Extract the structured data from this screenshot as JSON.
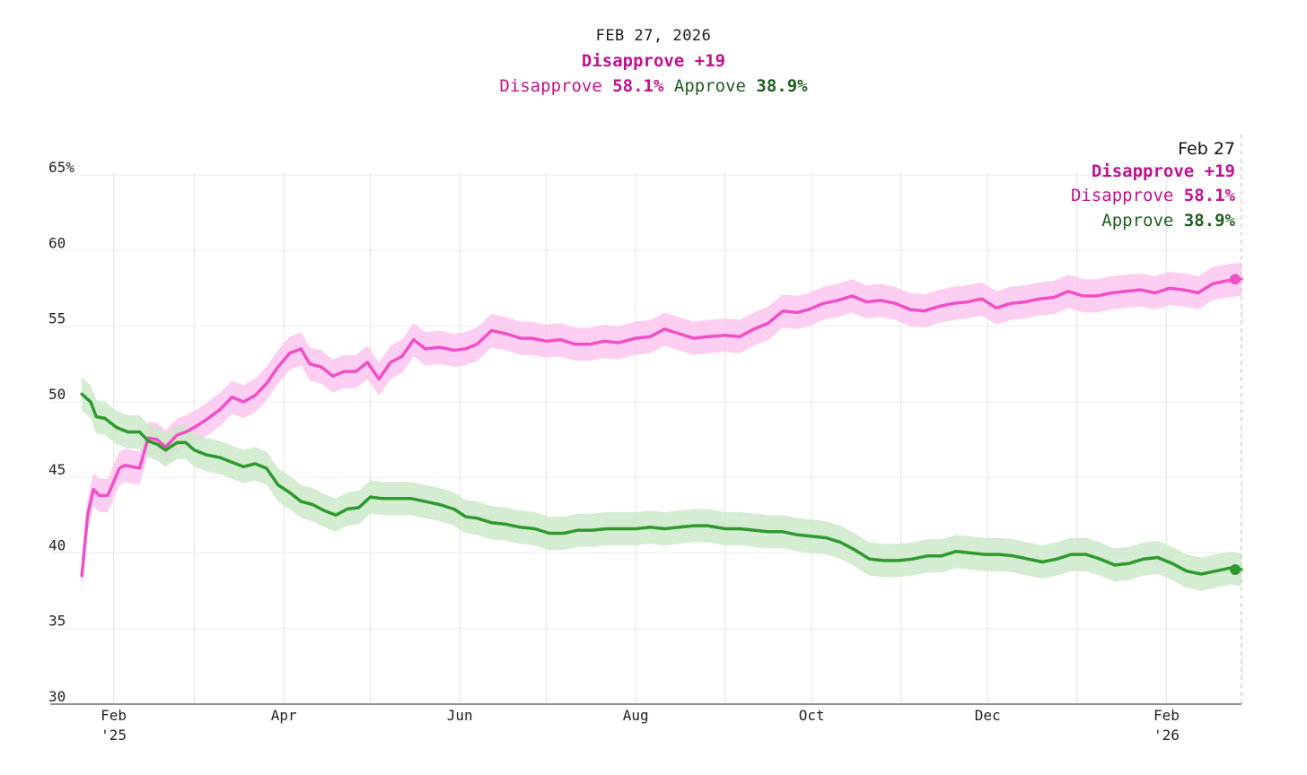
{
  "header": {
    "date": "FEB 27, 2026",
    "net": "Disapprove +19",
    "disapprove_label": "Disapprove",
    "disapprove_value": "58.1%",
    "approve_label": "Approve",
    "approve_value": "38.9%"
  },
  "tooltip": {
    "date": "Feb 27",
    "net": "Disapprove +19",
    "disapprove_label": "Disapprove",
    "disapprove_value": "58.1%",
    "approve_label": "Approve",
    "approve_value": "38.9%"
  },
  "colors": {
    "disapprove": "#f04fc6",
    "disapprove_band": "#fbc6ef",
    "disapprove_text": "#c2118f",
    "approve": "#2e9a2e",
    "approve_band": "#cde9c9",
    "approve_text": "#1e5e1e",
    "grid": "#e6e6e6"
  },
  "chart_data": {
    "type": "line",
    "title": "",
    "xlabel": "",
    "ylabel": "",
    "ylim": [
      30,
      65
    ],
    "yticks": [
      30,
      35,
      40,
      45,
      50,
      55,
      60,
      65
    ],
    "ytick_labels": [
      "30",
      "35",
      "40",
      "45",
      "50",
      "55",
      "60",
      "65%"
    ],
    "xlim": [
      "2025-01-20",
      "2026-02-27"
    ],
    "xticks": [
      {
        "date": "2025-02-01",
        "label": "Feb",
        "sub": "'25"
      },
      {
        "date": "2025-04-01",
        "label": "Apr",
        "sub": ""
      },
      {
        "date": "2025-06-01",
        "label": "Jun",
        "sub": ""
      },
      {
        "date": "2025-08-01",
        "label": "Aug",
        "sub": ""
      },
      {
        "date": "2025-10-01",
        "label": "Oct",
        "sub": ""
      },
      {
        "date": "2025-12-01",
        "label": "Dec",
        "sub": ""
      },
      {
        "date": "2026-02-01",
        "label": "Feb",
        "sub": "'26"
      }
    ],
    "grid": "vertical-monthly-and-horizontal",
    "band_halfwidth": 1.1,
    "series": [
      {
        "name": "Disapprove",
        "x": [
          "2025-01-21",
          "2025-01-23",
          "2025-01-25",
          "2025-01-27",
          "2025-01-30",
          "2025-02-03",
          "2025-02-05",
          "2025-02-10",
          "2025-02-13",
          "2025-02-16",
          "2025-02-19",
          "2025-02-23",
          "2025-02-26",
          "2025-03-01",
          "2025-03-05",
          "2025-03-10",
          "2025-03-14",
          "2025-03-18",
          "2025-03-22",
          "2025-03-26",
          "2025-03-30",
          "2025-04-03",
          "2025-04-07",
          "2025-04-10",
          "2025-04-14",
          "2025-04-18",
          "2025-04-22",
          "2025-04-26",
          "2025-04-30",
          "2025-05-04",
          "2025-05-08",
          "2025-05-12",
          "2025-05-16",
          "2025-05-20",
          "2025-05-25",
          "2025-05-30",
          "2025-06-03",
          "2025-06-07",
          "2025-06-12",
          "2025-06-17",
          "2025-06-22",
          "2025-06-26",
          "2025-07-01",
          "2025-07-06",
          "2025-07-11",
          "2025-07-16",
          "2025-07-21",
          "2025-07-26",
          "2025-08-01",
          "2025-08-06",
          "2025-08-11",
          "2025-08-16",
          "2025-08-21",
          "2025-08-26",
          "2025-09-01",
          "2025-09-06",
          "2025-09-11",
          "2025-09-16",
          "2025-09-21",
          "2025-09-26",
          "2025-09-30",
          "2025-10-05",
          "2025-10-10",
          "2025-10-15",
          "2025-10-20",
          "2025-10-25",
          "2025-10-30",
          "2025-11-04",
          "2025-11-09",
          "2025-11-14",
          "2025-11-19",
          "2025-11-24",
          "2025-11-29",
          "2025-12-04",
          "2025-12-09",
          "2025-12-14",
          "2025-12-19",
          "2025-12-24",
          "2025-12-29",
          "2026-01-03",
          "2026-01-08",
          "2026-01-13",
          "2026-01-18",
          "2026-01-23",
          "2026-01-28",
          "2026-02-02",
          "2026-02-07",
          "2026-02-12",
          "2026-02-17",
          "2026-02-22",
          "2026-02-27"
        ],
        "y": [
          38.5,
          42.5,
          44.2,
          43.8,
          43.8,
          45.6,
          45.8,
          45.6,
          47.6,
          47.5,
          47.0,
          47.8,
          48.0,
          48.3,
          48.8,
          49.5,
          50.3,
          50.0,
          50.4,
          51.2,
          52.3,
          53.2,
          53.5,
          52.5,
          52.3,
          51.7,
          52.0,
          52.0,
          52.6,
          51.5,
          52.6,
          53.0,
          54.1,
          53.5,
          53.6,
          53.4,
          53.5,
          53.8,
          54.7,
          54.5,
          54.2,
          54.2,
          54.0,
          54.1,
          53.8,
          53.8,
          54.0,
          53.9,
          54.2,
          54.3,
          54.8,
          54.5,
          54.2,
          54.3,
          54.4,
          54.3,
          54.8,
          55.2,
          56.0,
          55.9,
          56.1,
          56.5,
          56.7,
          57.0,
          56.6,
          56.7,
          56.5,
          56.1,
          56.0,
          56.3,
          56.5,
          56.6,
          56.8,
          56.2,
          56.5,
          56.6,
          56.8,
          56.9,
          57.3,
          57.0,
          57.0,
          57.2,
          57.3,
          57.4,
          57.2,
          57.5,
          57.4,
          57.2,
          57.8,
          58.0,
          58.1
        ]
      },
      {
        "name": "Approve",
        "x": [
          "2025-01-21",
          "2025-01-24",
          "2025-01-26",
          "2025-01-29",
          "2025-02-02",
          "2025-02-06",
          "2025-02-10",
          "2025-02-13",
          "2025-02-16",
          "2025-02-19",
          "2025-02-23",
          "2025-02-26",
          "2025-03-01",
          "2025-03-05",
          "2025-03-10",
          "2025-03-14",
          "2025-03-18",
          "2025-03-22",
          "2025-03-26",
          "2025-03-30",
          "2025-04-03",
          "2025-04-07",
          "2025-04-11",
          "2025-04-15",
          "2025-04-19",
          "2025-04-23",
          "2025-04-27",
          "2025-05-01",
          "2025-05-05",
          "2025-05-10",
          "2025-05-15",
          "2025-05-20",
          "2025-05-25",
          "2025-05-30",
          "2025-06-03",
          "2025-06-07",
          "2025-06-12",
          "2025-06-17",
          "2025-06-22",
          "2025-06-27",
          "2025-07-02",
          "2025-07-07",
          "2025-07-12",
          "2025-07-17",
          "2025-07-22",
          "2025-07-27",
          "2025-08-01",
          "2025-08-06",
          "2025-08-11",
          "2025-08-16",
          "2025-08-21",
          "2025-08-26",
          "2025-09-01",
          "2025-09-06",
          "2025-09-11",
          "2025-09-16",
          "2025-09-21",
          "2025-09-26",
          "2025-10-01",
          "2025-10-06",
          "2025-10-11",
          "2025-10-16",
          "2025-10-21",
          "2025-10-26",
          "2025-10-31",
          "2025-11-05",
          "2025-11-10",
          "2025-11-15",
          "2025-11-20",
          "2025-11-25",
          "2025-11-30",
          "2025-12-05",
          "2025-12-10",
          "2025-12-15",
          "2025-12-20",
          "2025-12-25",
          "2025-12-30",
          "2026-01-04",
          "2026-01-09",
          "2026-01-14",
          "2026-01-19",
          "2026-01-24",
          "2026-01-29",
          "2026-02-03",
          "2026-02-08",
          "2026-02-13",
          "2026-02-18",
          "2026-02-23",
          "2026-02-27"
        ],
        "y": [
          50.5,
          50.0,
          49.0,
          48.9,
          48.3,
          48.0,
          48.0,
          47.4,
          47.2,
          46.8,
          47.3,
          47.3,
          46.8,
          46.5,
          46.3,
          46.0,
          45.7,
          45.9,
          45.6,
          44.5,
          44.0,
          43.4,
          43.2,
          42.8,
          42.5,
          42.9,
          43.0,
          43.7,
          43.6,
          43.6,
          43.6,
          43.4,
          43.2,
          42.9,
          42.4,
          42.3,
          42.0,
          41.9,
          41.7,
          41.6,
          41.3,
          41.3,
          41.5,
          41.5,
          41.6,
          41.6,
          41.6,
          41.7,
          41.6,
          41.7,
          41.8,
          41.8,
          41.6,
          41.6,
          41.5,
          41.4,
          41.4,
          41.2,
          41.1,
          41.0,
          40.7,
          40.2,
          39.6,
          39.5,
          39.5,
          39.6,
          39.8,
          39.8,
          40.1,
          40.0,
          39.9,
          39.9,
          39.8,
          39.6,
          39.4,
          39.6,
          39.9,
          39.9,
          39.6,
          39.2,
          39.3,
          39.6,
          39.7,
          39.3,
          38.8,
          38.6,
          38.8,
          39.0,
          38.9
        ]
      }
    ]
  }
}
